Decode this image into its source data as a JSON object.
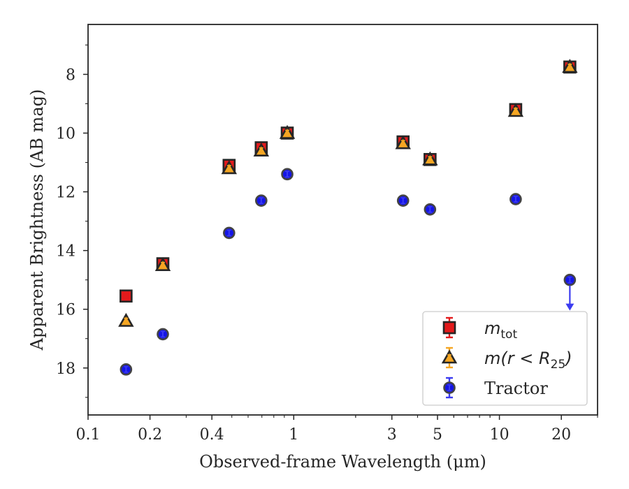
{
  "chart_data": {
    "type": "scatter",
    "xlabel": "Observed-frame Wavelength (μm)",
    "ylabel": "Apparent Brightness (AB mag)",
    "xscale": "log",
    "xlim": [
      0.1,
      30
    ],
    "ylim": [
      19.6,
      6.3
    ],
    "y_inverted": true,
    "x_ticks": [
      {
        "value": 0.1,
        "label": "0.1"
      },
      {
        "value": 0.2,
        "label": "0.2"
      },
      {
        "value": 0.4,
        "label": "0.4"
      },
      {
        "value": 1,
        "label": "1"
      },
      {
        "value": 3,
        "label": "3"
      },
      {
        "value": 5,
        "label": "5"
      },
      {
        "value": 10,
        "label": "10"
      },
      {
        "value": 20,
        "label": "20"
      }
    ],
    "y_ticks": [
      8,
      10,
      12,
      14,
      16,
      18
    ],
    "legend_position": "lower-right",
    "series": [
      {
        "name": "m_tot",
        "legend_main": "m",
        "legend_sub": "tot",
        "marker": "square",
        "color": "#e31a1c",
        "edge": "#262626",
        "errorbar_color": "#e31a1c",
        "x": [
          0.153,
          0.231,
          0.485,
          0.695,
          0.93,
          3.4,
          4.6,
          12.0,
          22.0
        ],
        "y": [
          15.55,
          14.45,
          11.1,
          10.5,
          10.0,
          10.3,
          10.9,
          9.2,
          7.75
        ]
      },
      {
        "name": "m(r < R25)",
        "legend_main": "m(r < R",
        "legend_sub": "25",
        "legend_tail": ")",
        "marker": "triangle",
        "color": "#f5a623",
        "edge": "#262626",
        "errorbar_color": "#f5a623",
        "x": [
          0.153,
          0.231,
          0.485,
          0.695,
          0.93,
          3.4,
          4.6,
          12.0,
          22.0
        ],
        "y": [
          16.4,
          14.5,
          11.2,
          10.6,
          10.0,
          10.35,
          10.9,
          9.25,
          7.75
        ]
      },
      {
        "name": "Tractor",
        "legend_main": "Tractor",
        "marker": "circle",
        "color": "#1515e6",
        "edge": "#444444",
        "errorbar_color": "#3b3bf0",
        "x": [
          0.153,
          0.231,
          0.485,
          0.695,
          0.93,
          3.4,
          4.6,
          12.0,
          22.0
        ],
        "y": [
          18.05,
          16.85,
          13.4,
          12.3,
          11.4,
          12.3,
          12.6,
          12.25,
          15.0
        ],
        "upper_limit_index": 8
      }
    ]
  }
}
